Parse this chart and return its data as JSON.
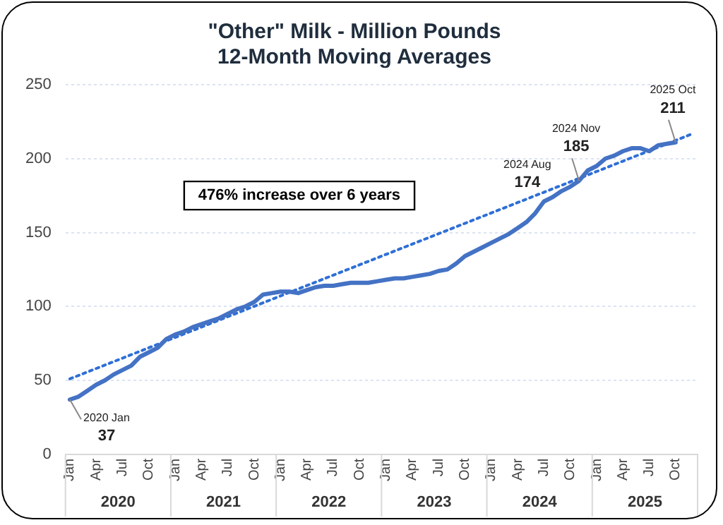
{
  "chart_data": {
    "type": "line",
    "title": "\"Other\" Milk - Million Pounds\n12-Month Moving Averages",
    "categories": [
      "Jan",
      null,
      null,
      "Apr",
      null,
      null,
      "Jul",
      null,
      null,
      "Oct",
      null,
      null,
      "Jan",
      null,
      null,
      "Apr",
      null,
      null,
      "Jul",
      null,
      null,
      "Oct",
      null,
      null,
      "Jan",
      null,
      null,
      "Apr",
      null,
      null,
      "Jul",
      null,
      null,
      "Oct",
      null,
      null,
      "Jan",
      null,
      null,
      "Apr",
      null,
      null,
      "Jul",
      null,
      null,
      "Oct",
      null,
      null,
      "Jan",
      null,
      null,
      "Apr",
      null,
      null,
      "Jul",
      null,
      null,
      "Oct",
      null,
      null,
      "Jan",
      null,
      null,
      "Apr",
      null,
      null,
      "Jul",
      null,
      null,
      "Oct",
      null,
      null
    ],
    "series": [
      {
        "color": "#4472c4",
        "line_style": "solid",
        "values": [
          37,
          39,
          43,
          47,
          50,
          54,
          57,
          60,
          66,
          69,
          72,
          78,
          81,
          83,
          86,
          88,
          90,
          92,
          95,
          98,
          100,
          103,
          108,
          109,
          110,
          110,
          109,
          111,
          113,
          114,
          114,
          115,
          116,
          116,
          116,
          117,
          118,
          119,
          119,
          120,
          121,
          122,
          124,
          125,
          129,
          134,
          137,
          140,
          143,
          146,
          149,
          153,
          157,
          163,
          171,
          174,
          178,
          181,
          185,
          192,
          195,
          200,
          202,
          205,
          207,
          207,
          205,
          209,
          210,
          211,
          null,
          null
        ],
        "value_labels": [
          "2020 Jan\n37",
          null,
          null,
          null,
          null,
          null,
          null,
          null,
          null,
          null,
          null,
          null,
          null,
          null,
          null,
          null,
          null,
          null,
          null,
          null,
          null,
          null,
          null,
          null,
          null,
          null,
          null,
          null,
          null,
          null,
          null,
          null,
          null,
          null,
          null,
          null,
          null,
          null,
          null,
          null,
          null,
          null,
          null,
          null,
          null,
          null,
          null,
          null,
          null,
          null,
          null,
          null,
          null,
          null,
          null,
          "2024 Aug\n174",
          null,
          null,
          "2024 Nov\n185",
          null,
          null,
          null,
          null,
          null,
          null,
          null,
          null,
          null,
          null,
          "2025 Oct\n211",
          null,
          null
        ]
      },
      {
        "type": "line",
        "color": "#2f6fd6",
        "line_style": "dotted",
        "values": [
          51,
          null,
          null,
          null,
          null,
          null,
          null,
          null,
          null,
          null,
          null,
          null,
          null,
          null,
          null,
          null,
          null,
          null,
          null,
          null,
          null,
          null,
          null,
          null,
          null,
          null,
          null,
          null,
          null,
          null,
          null,
          null,
          null,
          null,
          null,
          null,
          null,
          null,
          null,
          null,
          null,
          null,
          null,
          null,
          null,
          null,
          null,
          null,
          null,
          null,
          null,
          null,
          null,
          null,
          null,
          null,
          null,
          null,
          null,
          null,
          null,
          null,
          null,
          null,
          null,
          null,
          null,
          null,
          null,
          null,
          null,
          217
        ]
      }
    ],
    "ylim": [
      0,
      250
    ],
    "yticks": [
      0,
      50,
      100,
      150,
      200,
      250
    ],
    "grid": "y",
    "annotations": [
      "476% increase over 6 years",
      "2020",
      "2021",
      "2022",
      "2023",
      "2024",
      "2025"
    ]
  }
}
